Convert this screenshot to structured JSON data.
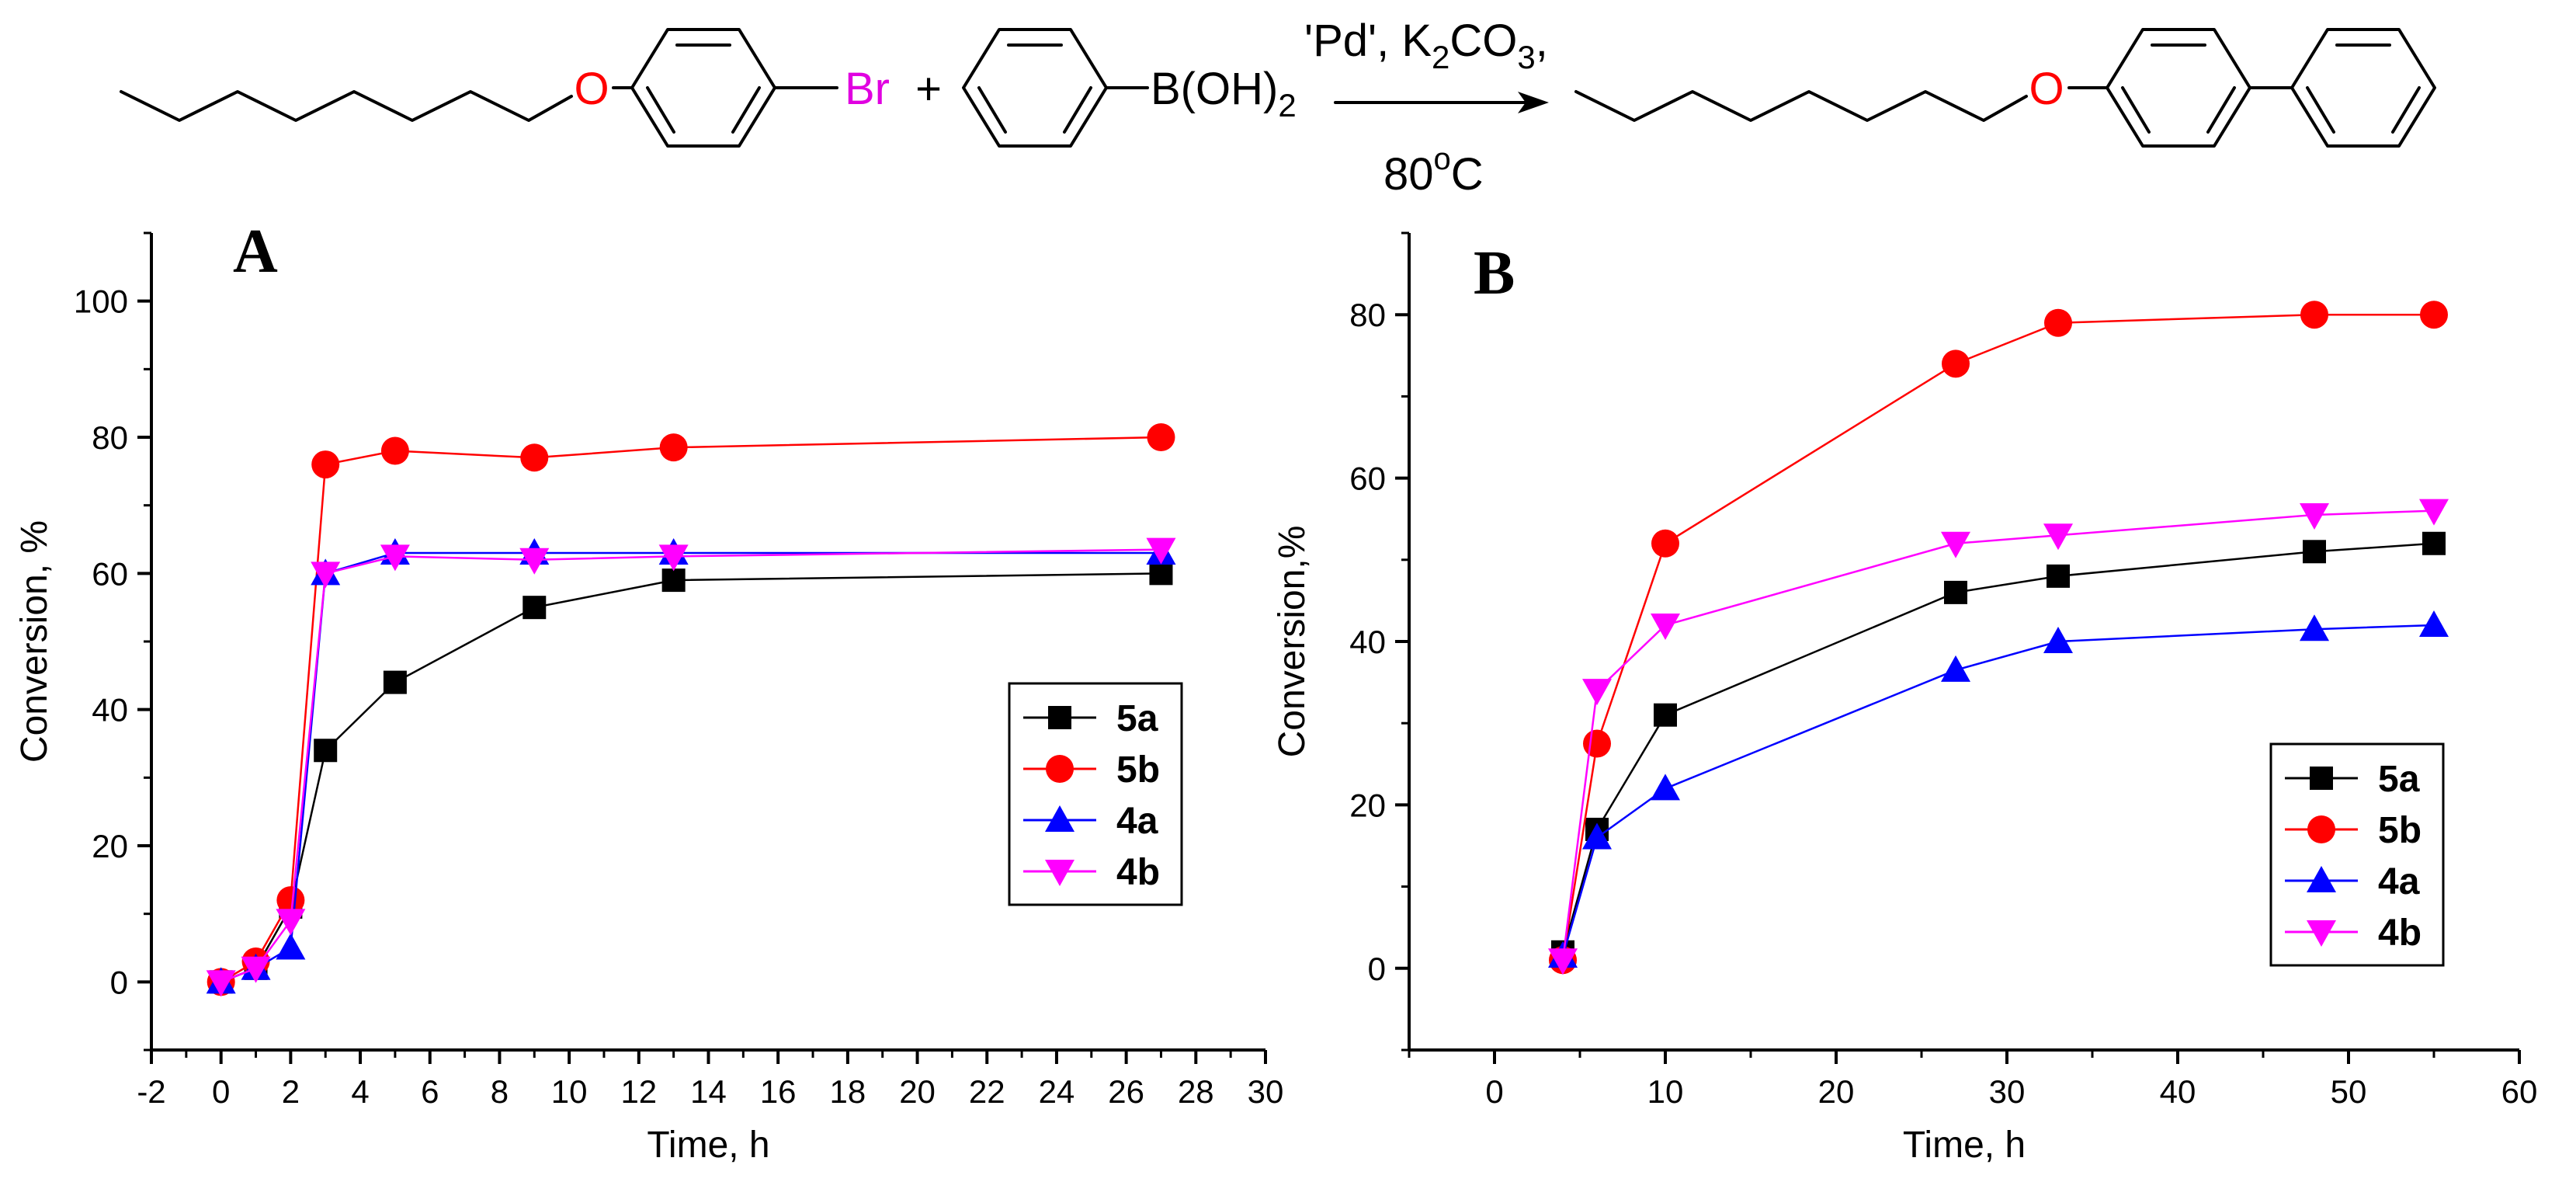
{
  "scheme": {
    "reactant_heteroatom": "O",
    "reactant_halogen": "Br",
    "plus": "+",
    "boronic_acid_label": "B(OH)",
    "boronic_acid_subscript": "2",
    "conditions_catalyst": "'Pd', K",
    "conditions_k_subscript": "2",
    "conditions_carbonate": "CO",
    "conditions_carbonate_subscript": "3",
    "conditions_trailing": ",",
    "temperature_value": "80",
    "temperature_degree": "o",
    "temperature_unit": "C",
    "product_heteroatom": "O"
  },
  "colors": {
    "5a": "#000000",
    "5b": "#ff0000",
    "4a": "#0000ff",
    "4b": "#ff00ff",
    "heteroatom": "#ff0000",
    "halogen": "#e000e0"
  },
  "chart_data": [
    {
      "panel": "A",
      "type": "line",
      "xlabel": "Time, h",
      "ylabel": "Conversion, %",
      "xlim": [
        -2,
        30
      ],
      "ylim": [
        -10,
        110
      ],
      "xticks": [
        -2,
        0,
        2,
        4,
        6,
        8,
        10,
        12,
        14,
        16,
        18,
        20,
        22,
        24,
        26,
        28,
        30
      ],
      "yticks": [
        0,
        20,
        40,
        60,
        80,
        100
      ],
      "legend_position": "right-middle",
      "series": [
        {
          "name": "5a",
          "marker": "square",
          "x": [
            0,
            1,
            2,
            3,
            5,
            9,
            13,
            27
          ],
          "y": [
            0,
            2,
            11,
            34,
            44,
            55,
            59,
            60
          ]
        },
        {
          "name": "5b",
          "marker": "circle",
          "x": [
            0,
            1,
            2,
            3,
            5,
            9,
            13,
            27
          ],
          "y": [
            0,
            3,
            12,
            76,
            78,
            77,
            78.5,
            80
          ]
        },
        {
          "name": "4a",
          "marker": "triangle-up",
          "x": [
            0,
            1,
            2,
            3,
            5,
            9,
            13,
            27
          ],
          "y": [
            0,
            2,
            5,
            60,
            63,
            63,
            63,
            63
          ]
        },
        {
          "name": "4b",
          "marker": "triangle-down",
          "x": [
            0,
            1,
            2,
            3,
            5,
            9,
            13,
            27
          ],
          "y": [
            0,
            2,
            9,
            60,
            62.5,
            62,
            62.5,
            63.5
          ]
        }
      ]
    },
    {
      "panel": "B",
      "type": "line",
      "xlabel": "Time, h",
      "ylabel": "Conversion,%",
      "xlim": [
        -5,
        60
      ],
      "ylim": [
        -10,
        90
      ],
      "xticks": [
        0,
        10,
        20,
        30,
        40,
        50,
        60
      ],
      "yticks": [
        0,
        20,
        40,
        60,
        80
      ],
      "legend_position": "bottom-right",
      "series": [
        {
          "name": "5a",
          "marker": "square",
          "x": [
            4,
            6,
            10,
            27,
            33,
            48,
            55
          ],
          "y": [
            2,
            17,
            31,
            46,
            48,
            51,
            52
          ]
        },
        {
          "name": "5b",
          "marker": "circle",
          "x": [
            4,
            6,
            10,
            27,
            33,
            48,
            55
          ],
          "y": [
            1,
            27.5,
            52,
            74,
            79,
            80,
            80
          ]
        },
        {
          "name": "4a",
          "marker": "triangle-up",
          "x": [
            4,
            6,
            10,
            27,
            33,
            48,
            55
          ],
          "y": [
            1.5,
            16,
            22,
            36.5,
            40,
            41.5,
            42
          ]
        },
        {
          "name": "4b",
          "marker": "triangle-down",
          "x": [
            4,
            6,
            10,
            27,
            33,
            48,
            55
          ],
          "y": [
            1,
            34,
            42,
            52,
            53,
            55.5,
            56
          ]
        }
      ]
    }
  ]
}
